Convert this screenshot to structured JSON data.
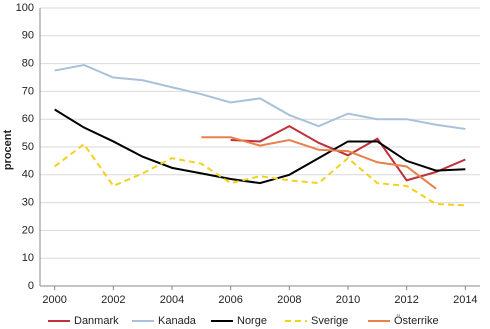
{
  "chart_data": {
    "type": "line",
    "y_label": "procent",
    "x": [
      2000,
      2001,
      2002,
      2003,
      2004,
      2005,
      2006,
      2007,
      2008,
      2009,
      2010,
      2011,
      2012,
      2013,
      2014
    ],
    "series": [
      {
        "name": "Danmark",
        "color": "#c0303a",
        "values": [
          null,
          null,
          null,
          null,
          null,
          null,
          52.5,
          52,
          57.5,
          51.5,
          47,
          53,
          38,
          41,
          45.5
        ]
      },
      {
        "name": "Kanada",
        "color": "#a9c1d9",
        "values": [
          77.5,
          79.5,
          75,
          74,
          71.5,
          69,
          66,
          67.5,
          61.5,
          57.5,
          62,
          60,
          60,
          58,
          56.5
        ]
      },
      {
        "name": "Norge",
        "color": "#000000",
        "values": [
          63.5,
          57,
          52,
          46.5,
          42.5,
          40.5,
          38.5,
          37,
          40,
          46,
          52,
          52,
          45,
          41.5,
          42
        ]
      },
      {
        "name": "Sverige",
        "color": "#f2d21e",
        "dashed": true,
        "values": [
          43,
          51,
          36,
          40.5,
          46,
          44,
          37,
          39.5,
          38,
          37,
          46,
          37,
          36,
          29.5,
          29
        ]
      },
      {
        "name": "Österrike",
        "color": "#e8804a",
        "values": [
          null,
          null,
          null,
          null,
          null,
          53.5,
          53.5,
          50.5,
          52.5,
          49,
          48.5,
          44.5,
          43,
          35,
          null
        ]
      }
    ],
    "xlim": [
      1999.5,
      2014.5
    ],
    "xticks": [
      2000,
      2002,
      2004,
      2006,
      2008,
      2010,
      2012,
      2014
    ],
    "ylim": [
      0,
      100
    ],
    "yticks": [
      0,
      10,
      20,
      30,
      40,
      50,
      60,
      70,
      80,
      90,
      100
    ],
    "grid": true,
    "legend": "bottom"
  }
}
